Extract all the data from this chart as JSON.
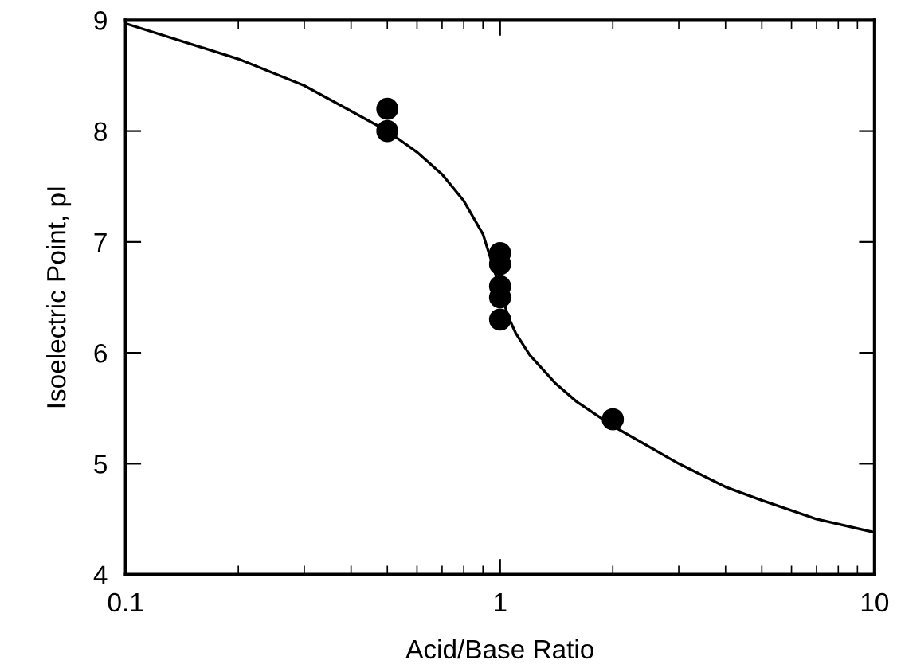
{
  "chart_data": {
    "type": "scatter",
    "xlabel": "Acid/Base Ratio",
    "ylabel": "Isoelectric Point, pI",
    "log": "x",
    "xlim": [
      0.1,
      10
    ],
    "xticks": [
      0.1,
      1,
      10
    ],
    "ylim": [
      4,
      9
    ],
    "yticks": [
      4,
      5,
      6,
      7,
      8,
      9
    ],
    "grid": false,
    "series": [
      {
        "type": "line",
        "marker": "none",
        "color": "#000000",
        "x": [
          0.1,
          0.2,
          0.3,
          0.4,
          0.5,
          0.6,
          0.7,
          0.8,
          0.9,
          0.95,
          1.0,
          1.05,
          1.1,
          1.2,
          1.4,
          1.6,
          2,
          3,
          4,
          5,
          7,
          10
        ],
        "values": [
          8.97,
          8.65,
          8.41,
          8.18,
          8.0,
          7.81,
          7.61,
          7.37,
          7.07,
          6.82,
          6.57,
          6.33,
          6.18,
          5.98,
          5.73,
          5.56,
          5.34,
          5.0,
          4.79,
          4.67,
          4.5,
          4.38
        ]
      },
      {
        "marker": "circle",
        "color": "#000000",
        "x": [
          0.5,
          0.5,
          1,
          1,
          1,
          1,
          1,
          2
        ],
        "values": [
          8.2,
          8.0,
          6.9,
          6.8,
          6.6,
          6.5,
          6.3,
          5.4
        ]
      }
    ]
  }
}
